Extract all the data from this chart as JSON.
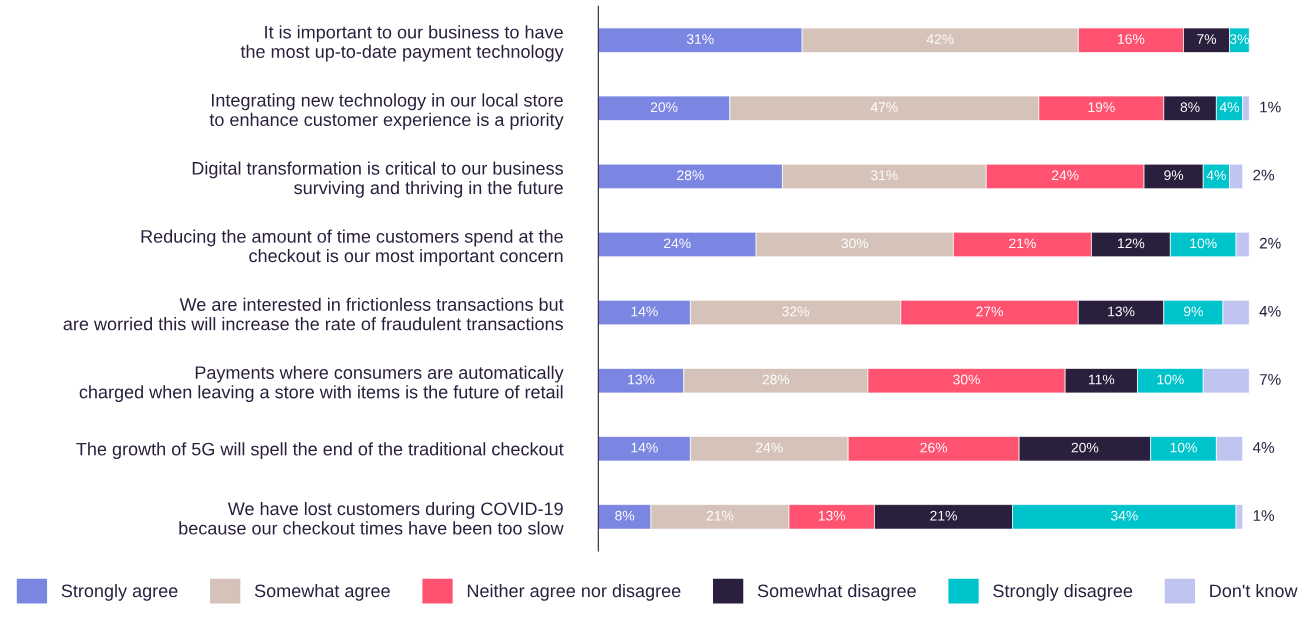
{
  "chart_data": {
    "type": "bar",
    "orientation": "horizontal",
    "stacked": true,
    "legend": "bottom",
    "grid": false,
    "tick_labels": "y",
    "categories": [
      "It is important to our business to have\nthe most up-to-date payment technology",
      "Integrating new technology in our local store\nto enhance customer experience is a priority",
      "Digital transformation is critical to our business\nsurviving and thriving in the future",
      "Reducing the amount of time customers spend at the\ncheckout is our most important concern",
      "We are interested in frictionless transactions but\nare worried this will increase the rate of fraudulent transactions",
      "Payments where consumers are automatically\ncharged when leaving a store with items is the future of retail",
      "The growth of 5G will spell the end of the traditional checkout",
      "We have lost customers during COVID-19\nbecause our checkout times have been too slow"
    ],
    "series": [
      {
        "name": "Strongly agree",
        "color": "#7b86e2",
        "values": [
          31,
          20,
          28,
          24,
          14,
          13,
          14,
          8
        ],
        "value_labels": [
          "31%",
          "20%",
          "28%",
          "24%",
          "14%",
          "13%",
          "14%",
          "8%"
        ]
      },
      {
        "name": "Somewhat agree",
        "color": "#d5c2b8",
        "values": [
          42,
          47,
          31,
          30,
          32,
          28,
          24,
          21
        ],
        "value_labels": [
          "42%",
          "47%",
          "31%",
          "30%",
          "32%",
          "28%",
          "24%",
          "21%"
        ]
      },
      {
        "name": "Neither agree nor disagree",
        "color": "#ff5270",
        "values": [
          16,
          19,
          24,
          21,
          27,
          30,
          26,
          13
        ],
        "value_labels": [
          "16%",
          "19%",
          "24%",
          "21%",
          "27%",
          "30%",
          "26%",
          "13%"
        ]
      },
      {
        "name": "Somewhat disagree",
        "color": "#2a1f3d",
        "values": [
          7,
          8,
          9,
          12,
          13,
          11,
          20,
          21
        ],
        "value_labels": [
          "7%",
          "8%",
          "9%",
          "12%",
          "13%",
          "11%",
          "20%",
          "21%"
        ]
      },
      {
        "name": "Strongly disagree",
        "color": "#00c4cc",
        "values": [
          3,
          4,
          4,
          10,
          9,
          10,
          10,
          34
        ],
        "value_labels": [
          "3%",
          "4%",
          "4%",
          "10%",
          "9%",
          "10%",
          "10%",
          "34%"
        ]
      },
      {
        "name": "Don't know",
        "color": "#c0c4f0",
        "values": [
          null,
          1,
          2,
          2,
          4,
          7,
          4,
          1
        ],
        "value_labels": [
          null,
          "1%",
          "2%",
          "2%",
          "4%",
          "7%",
          "4%",
          "1%"
        ]
      }
    ]
  }
}
